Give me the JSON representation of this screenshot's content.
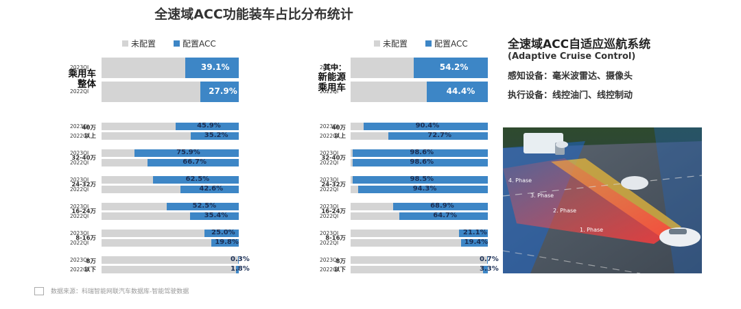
{
  "title": "全速域ACC功能装车占比分布统计",
  "legend": {
    "unconfigured": "未配置",
    "configured": "配置ACC"
  },
  "colors": {
    "unconfigured": "#d4d4d4",
    "configured": "#3d86c6"
  },
  "years": [
    "2023Q1",
    "2022Q1"
  ],
  "chart_data": [
    {
      "type": "bar",
      "orientation": "horizontal-stacked-100",
      "title": "乘用车整体",
      "groups": [
        {
          "label": "乘用车整体",
          "values": [
            39.1,
            27.9
          ],
          "labels": [
            "39.1%",
            "27.9%"
          ]
        },
        {
          "label": "40万以上",
          "values": [
            45.9,
            35.2
          ],
          "labels": [
            "45.9%",
            "35.2%"
          ]
        },
        {
          "label": "32-40万",
          "values": [
            75.9,
            66.7
          ],
          "labels": [
            "75.9%",
            "66.7%"
          ]
        },
        {
          "label": "24-32万",
          "values": [
            62.5,
            42.6
          ],
          "labels": [
            "62.5%",
            "42.6%"
          ]
        },
        {
          "label": "16-24万",
          "values": [
            52.5,
            35.4
          ],
          "labels": [
            "52.5%",
            "35.4%"
          ]
        },
        {
          "label": "8-16万",
          "values": [
            25.0,
            19.8
          ],
          "labels": [
            "25.0%",
            "19.8%"
          ]
        },
        {
          "label": "8万以下",
          "values": [
            0.3,
            1.8
          ],
          "labels": [
            "0.3%",
            "1.8%"
          ]
        }
      ],
      "series": [
        "2023Q1",
        "2022Q1"
      ],
      "xlim": [
        0,
        100
      ]
    },
    {
      "type": "bar",
      "orientation": "horizontal-stacked-100",
      "title": "其中：新能源乘用车",
      "groups": [
        {
          "label": "其中：新能源乘用车",
          "values": [
            54.2,
            44.4
          ],
          "labels": [
            "54.2%",
            "44.4%"
          ]
        },
        {
          "label": "40万以上",
          "values": [
            90.4,
            72.7
          ],
          "labels": [
            "90.4%",
            "72.7%"
          ]
        },
        {
          "label": "32-40万",
          "values": [
            98.6,
            98.6
          ],
          "labels": [
            "98.6%",
            "98.6%"
          ]
        },
        {
          "label": "24-32万",
          "values": [
            98.5,
            94.3
          ],
          "labels": [
            "98.5%",
            "94.3%"
          ]
        },
        {
          "label": "16-24万",
          "values": [
            68.9,
            64.7
          ],
          "labels": [
            "68.9%",
            "64.7%"
          ]
        },
        {
          "label": "8-16万",
          "values": [
            21.1,
            19.4
          ],
          "labels": [
            "21.1%",
            "19.4%"
          ]
        },
        {
          "label": "8万以下",
          "values": [
            0.7,
            3.3
          ],
          "labels": [
            "0.7%",
            "3.3%"
          ]
        }
      ],
      "series": [
        "2023Q1",
        "2022Q1"
      ],
      "xlim": [
        0,
        100
      ]
    }
  ],
  "row_labels": {
    "left": [
      {
        "l1": "乘用车",
        "l2": "整体"
      },
      {
        "l1": "40万",
        "l2": "以上"
      },
      {
        "l1": "32-40万",
        "l2": ""
      },
      {
        "l1": "24-32万",
        "l2": ""
      },
      {
        "l1": "16-24万",
        "l2": ""
      },
      {
        "l1": "8-16万",
        "l2": ""
      },
      {
        "l1": "8万",
        "l2": "以下"
      }
    ],
    "right": [
      {
        "l0": "其中：",
        "l1": "新能源",
        "l2": "乘用车"
      },
      {
        "l1": "40万",
        "l2": "以上"
      },
      {
        "l1": "32-40万",
        "l2": ""
      },
      {
        "l1": "24-32万",
        "l2": ""
      },
      {
        "l1": "16-24万",
        "l2": ""
      },
      {
        "l1": "8-16万",
        "l2": ""
      },
      {
        "l1": "8万",
        "l2": "以下"
      }
    ]
  },
  "year_labels": [
    "2023QI",
    "2022QI"
  ],
  "panel": {
    "title": "全速域ACC自适应巡航系统",
    "subtitle": "(Adaptive Cruise Control)",
    "perception": "感知设备：毫米波雷达、摄像头",
    "execution": "执行设备：线控油门、线控制动",
    "phases": [
      "4. Phase",
      "3. Phase",
      "2. Phase",
      "1. Phase"
    ]
  },
  "source": "数据来源：科瑞智能网联汽车数据库-智能驾驶数据"
}
